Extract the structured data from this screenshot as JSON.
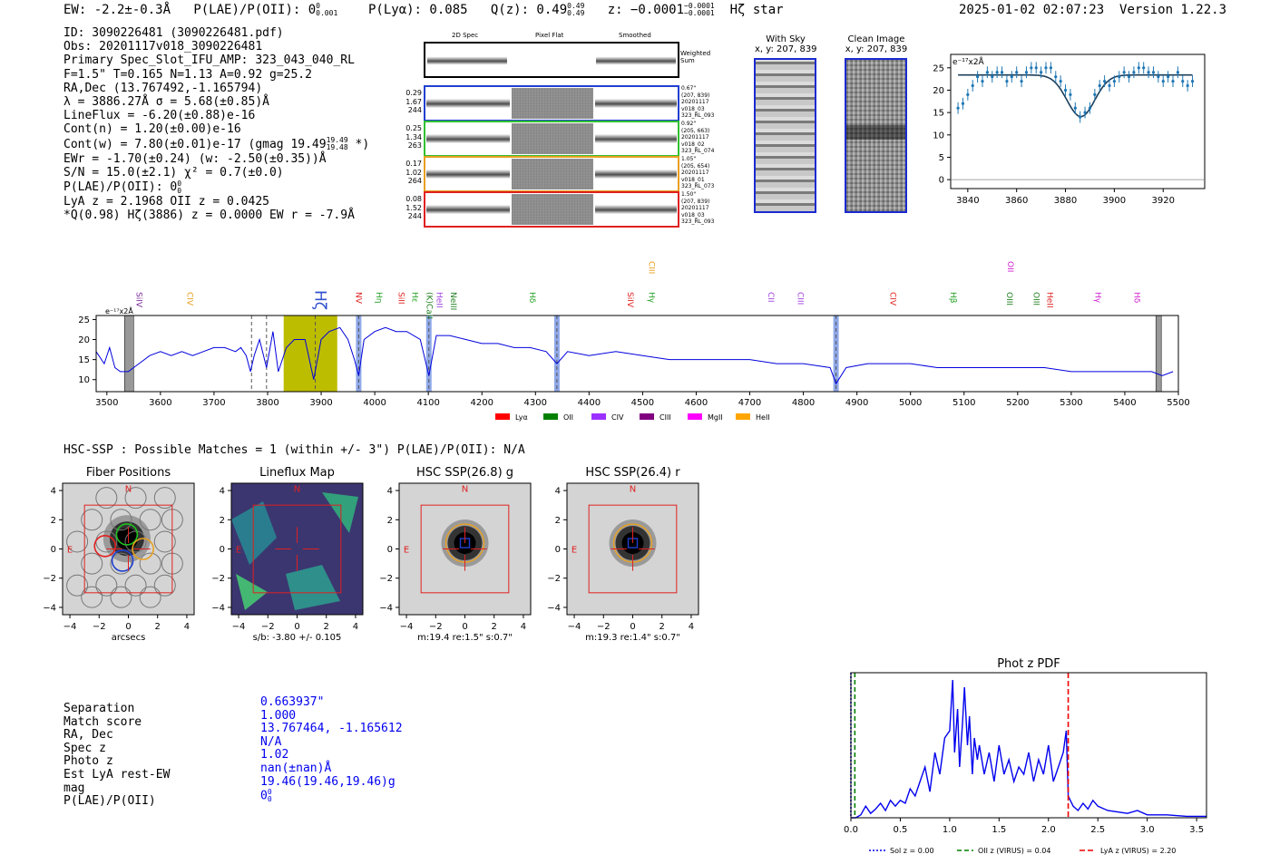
{
  "header": {
    "ew": "EW: -2.2±-0.3Å",
    "plae_label": "P(LAE)/P(OII): 0",
    "plae_sup": "0",
    "plae_sub": "0.001",
    "plya": "P(Lyα): 0.085",
    "qz_label": "Q(z): 0.49",
    "qz_sup": "0.49",
    "qz_sub": "0.49",
    "z_label": "z: −0.0001",
    "z_sup": "−0.0001",
    "z_sub": "−0.0001",
    "line_tag": "Hζ  star",
    "datetime": "2025-01-02 02:07:23",
    "version": "Version 1.22.3"
  },
  "info": {
    "lines": [
      "ID: 3090226481 (3090226481.pdf)",
      "Obs: 20201117v018_3090226481",
      "Primary Spec_Slot_IFU_AMP: 323_043_040_RL",
      "F=1.5\"  T=0.165  N=1.13  A=0.92  g=25.2",
      "RA,Dec (13.767492,-1.165794)",
      "λ = 3886.27Å  σ = 5.68(±0.85)Å",
      "LineFlux = -6.20(±0.88)e-16",
      "Cont(n) = 1.20(±0.00)e-16"
    ],
    "contw": "Cont(w) = 7.80(±0.01)e-17 (gmag 19.49",
    "contw_sup": "19.49",
    "contw_sub": "19.48",
    "contw_end": "*)",
    "lines2": [
      "EWr = -1.70(±0.24) (w: -2.50(±0.35))Å",
      "S/N = 15.0(±2.1)  χ² = 0.7(±0.0)"
    ],
    "plae": "P(LAE)/P(OII): 0",
    "plae_sup": "0",
    "plae_sub": "0",
    "lines3": [
      "LyA z = 2.1968  OII z = 0.0425",
      "*Q(0.98) Hζ(3886) z = 0.0000  EW r = -7.9Å"
    ]
  },
  "cutouts": {
    "col_headers": [
      "2D Spec",
      "Pixel Flat",
      "Smoothed"
    ],
    "weighted_label": "Weighted Sum",
    "rows": [
      {
        "left": [
          "0.29",
          "1.67",
          "244"
        ],
        "right": [
          "0.67\"",
          "(207, 839)",
          "20201117",
          "v018_03",
          "323_RL_093"
        ],
        "color": "#2040d0"
      },
      {
        "left": [
          "0.25",
          "1.34",
          "263"
        ],
        "right": [
          "0.92\"",
          "(205, 663)",
          "20201117",
          "v018_02",
          "323_RL_074"
        ],
        "color": "#30c030"
      },
      {
        "left": [
          "0.17",
          "1.02",
          "264"
        ],
        "right": [
          "1.05\"",
          "(205, 654)",
          "20201117",
          "v018_01",
          "323_RL_073"
        ],
        "color": "#e8a020"
      },
      {
        "left": [
          "0.08",
          "1.52",
          "244"
        ],
        "right": [
          "1.50\"",
          "(207, 839)",
          "20201117",
          "v018_03",
          "323_RL_093"
        ],
        "color": "#e02020"
      }
    ],
    "with_sky": [
      "With Sky",
      "x, y: 207, 839"
    ],
    "clean_image": [
      "Clean Image",
      "x, y: 207, 839"
    ]
  },
  "zoom_chart": {
    "type": "scatter",
    "ylabel_unit": "e⁻¹⁷x2Å",
    "xlim": [
      3833,
      3937
    ],
    "ylim": [
      -2,
      28
    ],
    "xticks": [
      3840,
      3860,
      3880,
      3900,
      3920
    ],
    "yticks": [
      0,
      5,
      10,
      15,
      20,
      25
    ],
    "x": [
      3836,
      3838,
      3840,
      3842,
      3844,
      3846,
      3848,
      3850,
      3852,
      3854,
      3856,
      3858,
      3860,
      3862,
      3864,
      3866,
      3868,
      3870,
      3872,
      3874,
      3876,
      3878,
      3880,
      3882,
      3884,
      3886,
      3888,
      3890,
      3892,
      3894,
      3896,
      3898,
      3900,
      3902,
      3904,
      3906,
      3908,
      3910,
      3912,
      3914,
      3916,
      3918,
      3920,
      3922,
      3924,
      3926,
      3928,
      3930,
      3932
    ],
    "y": [
      16,
      17,
      19,
      21,
      23,
      22,
      24,
      23,
      24,
      24,
      22,
      23,
      24,
      22,
      24,
      25,
      25,
      24,
      25,
      25,
      23,
      22,
      20,
      19,
      16,
      14,
      15,
      16,
      19,
      21,
      22,
      21,
      22,
      23,
      24,
      23,
      24,
      25,
      25,
      24,
      24,
      23,
      22,
      23,
      22,
      24,
      22,
      21,
      22
    ],
    "fit_baseline": 23.4,
    "fit_center": 3886.3,
    "fit_sigma": 5.68,
    "fit_depth": 9.3
  },
  "spectrum": {
    "type": "line",
    "xlim": [
      3480,
      5500
    ],
    "ylim": [
      7,
      26
    ],
    "xticks": [
      3500,
      3600,
      3700,
      3800,
      3900,
      4000,
      4100,
      4200,
      4300,
      4400,
      4500,
      4600,
      4700,
      4800,
      4900,
      5000,
      5100,
      5200,
      5300,
      5400,
      5500
    ],
    "yticks": [
      10,
      15,
      20,
      25
    ],
    "unit": "e⁻¹⁷x2Å",
    "line_labels": [
      {
        "label": "SiIV",
        "w": 3555,
        "color": "#7a2a9a"
      },
      {
        "label": "CIV",
        "w": 3650,
        "color": "#e8a020"
      },
      {
        "label": "Hζ",
        "w": 3889,
        "color": "#3050d0",
        "big": true
      },
      {
        "label": "NV",
        "w": 3965,
        "color": "#e02020"
      },
      {
        "label": "Hη",
        "w": 4003,
        "color": "#20a020"
      },
      {
        "label": "SiII",
        "w": 4045,
        "color": "#e02020"
      },
      {
        "label": "Hε",
        "w": 4070,
        "color": "#20a020"
      },
      {
        "label": "(K)CaII",
        "w": 4097,
        "color": "#208020"
      },
      {
        "label": "HeII",
        "w": 4116,
        "color": "#a040e0"
      },
      {
        "label": "NeIII",
        "w": 4142,
        "color": "#208020"
      },
      {
        "label": "Hδ",
        "w": 4289,
        "color": "#20a020"
      },
      {
        "label": "SiIV",
        "w": 4472,
        "color": "#e02020"
      },
      {
        "label": "Hγ",
        "w": 4512,
        "color": "#20a020"
      },
      {
        "label": "CIII",
        "w": 4512,
        "color": "#e8a020",
        "high": true
      },
      {
        "label": "CII",
        "w": 4735,
        "color": "#a040e0"
      },
      {
        "label": "CIII",
        "w": 4790,
        "color": "#a040e0"
      },
      {
        "label": "CIV",
        "w": 4962,
        "color": "#e02020"
      },
      {
        "label": "Hβ",
        "w": 5075,
        "color": "#20a020"
      },
      {
        "label": "OIII",
        "w": 5180,
        "color": "#208020"
      },
      {
        "label": "OII",
        "w": 5182,
        "color": "#d020d0",
        "high": true
      },
      {
        "label": "OIII",
        "w": 5230,
        "color": "#208020"
      },
      {
        "label": "HeII",
        "w": 5255,
        "color": "#e02020"
      },
      {
        "label": "Hγ",
        "w": 5345,
        "color": "#d020d0"
      },
      {
        "label": "Hδ",
        "w": 5418,
        "color": "#d020d0"
      }
    ],
    "legend": [
      {
        "label": "Lyα",
        "color": "#ff0000"
      },
      {
        "label": "OII",
        "color": "#008000"
      },
      {
        "label": "CIV",
        "color": "#9b30ff"
      },
      {
        "label": "CIII",
        "color": "#800080"
      },
      {
        "label": "MgII",
        "color": "#ff00ff"
      },
      {
        "label": "HeII",
        "color": "#ffa500"
      }
    ],
    "bars": [
      3970,
      4101,
      4340,
      4861
    ],
    "highlight": [
      3830,
      3930
    ],
    "x": [
      3480,
      3495,
      3505,
      3515,
      3525,
      3540,
      3560,
      3580,
      3600,
      3620,
      3640,
      3660,
      3680,
      3700,
      3720,
      3740,
      3750,
      3760,
      3768,
      3775,
      3785,
      3798,
      3810,
      3820,
      3835,
      3850,
      3870,
      3886,
      3900,
      3915,
      3935,
      3950,
      3962,
      3970,
      3980,
      4000,
      4020,
      4040,
      4060,
      4085,
      4101,
      4115,
      4140,
      4170,
      4200,
      4230,
      4260,
      4290,
      4320,
      4340,
      4360,
      4400,
      4450,
      4500,
      4550,
      4600,
      4650,
      4700,
      4750,
      4800,
      4850,
      4861,
      4880,
      4920,
      4960,
      5000,
      5050,
      5100,
      5150,
      5200,
      5250,
      5300,
      5350,
      5400,
      5450,
      5470,
      5490
    ],
    "y": [
      17,
      14,
      18,
      13,
      12,
      12,
      14,
      16,
      17,
      16,
      17,
      16,
      17,
      18,
      18,
      17,
      18,
      16,
      12,
      16,
      20,
      13,
      22,
      12,
      18,
      20,
      20,
      10,
      20,
      22,
      23,
      20,
      15,
      11,
      20,
      22,
      23,
      22,
      22,
      20,
      11,
      21,
      21,
      20,
      19,
      19,
      18,
      18,
      17,
      14,
      17,
      16,
      17,
      16,
      15,
      15,
      15,
      15,
      14,
      14,
      13,
      9,
      13,
      14,
      14,
      14,
      13,
      13,
      13,
      13,
      13,
      12,
      12,
      12,
      12,
      11,
      12
    ]
  },
  "hsc": {
    "header": "HSC-SSP : Possible Matches = 1 (within +/- 3\")  P(LAE)/P(OII): N/A",
    "panels": [
      {
        "title": "Fiber Positions",
        "xlabel": "arcsecs"
      },
      {
        "title": "Lineflux Map",
        "xlabel": "s/b: -3.80 +/- 0.105"
      },
      {
        "title": "HSC SSP(26.8) g",
        "xlabel": "m:19.4  re:1.5\"  s:0.7\""
      },
      {
        "title": "HSC SSP(26.4) r",
        "xlabel": "m:19.3  re:1.4\"  s:0.7\""
      }
    ],
    "ticks": [
      "−4",
      "−2",
      "0",
      "2",
      "4"
    ],
    "yticks": [
      "4",
      "2",
      "0",
      "−2",
      "−4"
    ],
    "north": "N",
    "east": "E"
  },
  "match": {
    "labels": [
      "Separation",
      "Match score",
      "RA, Dec",
      "Spec z",
      "Photo z",
      "Est LyA rest-EW",
      "mag",
      "P(LAE)/P(OII)"
    ],
    "values": [
      "0.663937\"",
      "1.000",
      "13.767464, -1.165612",
      "N/A",
      "1.02",
      "nan(±nan)Å",
      "19.46(19.46,19.46)g",
      "0"
    ],
    "plae_sup": "0",
    "plae_sub": "0"
  },
  "photz": {
    "type": "line",
    "title": "Phot z PDF",
    "xlim": [
      0,
      3.6
    ],
    "xticks": [
      "0.0",
      "0.5",
      "1.0",
      "1.5",
      "2.0",
      "2.5",
      "3.0",
      "3.5"
    ],
    "x": [
      0,
      0.05,
      0.1,
      0.15,
      0.2,
      0.25,
      0.3,
      0.35,
      0.4,
      0.45,
      0.5,
      0.55,
      0.6,
      0.65,
      0.7,
      0.75,
      0.8,
      0.85,
      0.9,
      0.95,
      1.0,
      1.03,
      1.05,
      1.08,
      1.1,
      1.13,
      1.15,
      1.18,
      1.2,
      1.23,
      1.25,
      1.28,
      1.3,
      1.35,
      1.4,
      1.45,
      1.5,
      1.55,
      1.6,
      1.65,
      1.7,
      1.75,
      1.8,
      1.85,
      1.9,
      1.95,
      2.0,
      2.05,
      2.1,
      2.15,
      2.18,
      2.2,
      2.25,
      2.3,
      2.35,
      2.4,
      2.45,
      2.5,
      2.6,
      2.7,
      2.8,
      2.9,
      3.0,
      3.2,
      3.4,
      3.6
    ],
    "y": [
      0,
      0,
      0.02,
      0.08,
      0.03,
      0.06,
      0.1,
      0.05,
      0.12,
      0.08,
      0.12,
      0.1,
      0.2,
      0.15,
      0.25,
      0.35,
      0.18,
      0.45,
      0.3,
      0.55,
      0.6,
      0.95,
      0.45,
      0.75,
      0.35,
      0.65,
      0.9,
      0.5,
      0.7,
      0.3,
      0.55,
      0.4,
      0.5,
      0.3,
      0.45,
      0.25,
      0.5,
      0.3,
      0.4,
      0.25,
      0.35,
      0.3,
      0.45,
      0.25,
      0.4,
      0.3,
      0.5,
      0.25,
      0.35,
      0.45,
      0.6,
      0.15,
      0.08,
      0.05,
      0.1,
      0.06,
      0.12,
      0.08,
      0.05,
      0.04,
      0.03,
      0.05,
      0.02,
      0.02,
      0.01,
      0.01
    ],
    "markers": [
      {
        "label": "Sol z = 0.00",
        "color": "#0000ee",
        "z": 0.0,
        "dash": "2,2"
      },
      {
        "label": "OII z (VIRUS) = 0.04",
        "color": "#008000",
        "z": 0.04,
        "dash": "5,3"
      },
      {
        "label": "LyA z (VIRUS) = 2.20",
        "color": "#ee0000",
        "z": 2.2,
        "dash": "6,3"
      }
    ]
  }
}
